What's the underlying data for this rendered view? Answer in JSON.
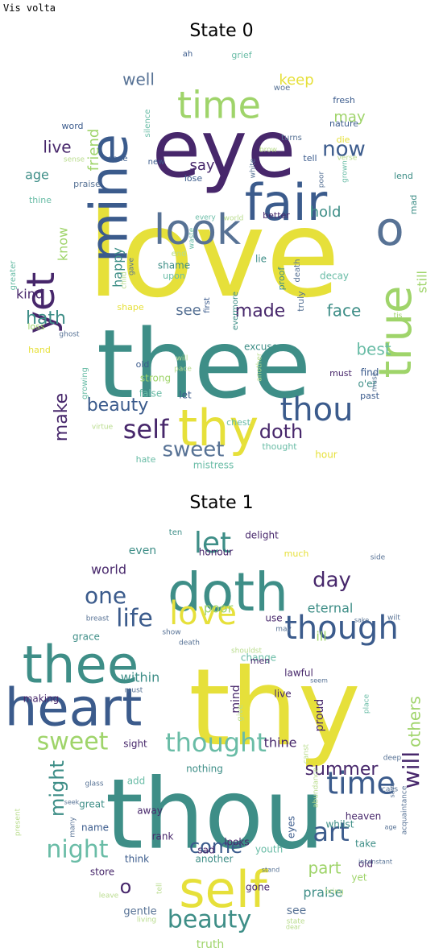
{
  "header": {
    "label": "Vis volta"
  },
  "palette": {
    "yellow": "#e6e03a",
    "green": "#9fd46a",
    "teal": "#3e8e87",
    "blue": "#3b5b8c",
    "purple": "#47276b",
    "lightgreen": "#b9dc8d",
    "aqua": "#69bca6",
    "slate": "#577295",
    "gray": "#5e6e8a"
  },
  "panels": [
    {
      "title": "State 0",
      "words": [
        {
          "text": "love",
          "color": "yellow"
        },
        {
          "text": "thee",
          "color": "teal"
        },
        {
          "text": "eye",
          "color": "purple"
        },
        {
          "text": "fair",
          "color": "blue"
        },
        {
          "text": "thy",
          "color": "yellow"
        },
        {
          "text": "mine",
          "color": "blue"
        },
        {
          "text": "look",
          "color": "slate"
        },
        {
          "text": "time",
          "color": "green"
        },
        {
          "text": "yet",
          "color": "purple"
        },
        {
          "text": "true",
          "color": "green"
        },
        {
          "text": "o",
          "color": "slate"
        },
        {
          "text": "thou",
          "color": "blue"
        },
        {
          "text": "self",
          "color": "purple"
        },
        {
          "text": "doth",
          "color": "purple"
        },
        {
          "text": "beauty",
          "color": "blue"
        },
        {
          "text": "sweet",
          "color": "slate"
        },
        {
          "text": "hath",
          "color": "teal"
        },
        {
          "text": "make",
          "color": "purple"
        },
        {
          "text": "made",
          "color": "purple"
        },
        {
          "text": "face",
          "color": "teal"
        },
        {
          "text": "best",
          "color": "aqua"
        },
        {
          "text": "now",
          "color": "blue"
        },
        {
          "text": "well",
          "color": "slate"
        },
        {
          "text": "keep",
          "color": "yellow"
        },
        {
          "text": "may",
          "color": "green"
        },
        {
          "text": "live",
          "color": "purple"
        },
        {
          "text": "age",
          "color": "teal"
        },
        {
          "text": "friend",
          "color": "green"
        },
        {
          "text": "know",
          "color": "green"
        },
        {
          "text": "say",
          "color": "purple"
        },
        {
          "text": "hold",
          "color": "teal"
        },
        {
          "text": "happy",
          "color": "teal"
        },
        {
          "text": "kind",
          "color": "purple"
        },
        {
          "text": "still",
          "color": "green"
        },
        {
          "text": "see",
          "color": "slate"
        },
        {
          "text": "thought",
          "color": "aqua"
        },
        {
          "text": "hour",
          "color": "yellow"
        },
        {
          "text": "mistress",
          "color": "aqua"
        },
        {
          "text": "hate",
          "color": "aqua"
        },
        {
          "text": "false",
          "color": "aqua"
        },
        {
          "text": "strong",
          "color": "green"
        },
        {
          "text": "let",
          "color": "blue"
        },
        {
          "text": "old",
          "color": "blue"
        },
        {
          "text": "excuse",
          "color": "teal"
        },
        {
          "text": "must",
          "color": "purple"
        },
        {
          "text": "find",
          "color": "blue"
        },
        {
          "text": "o'er",
          "color": "teal"
        },
        {
          "text": "past",
          "color": "blue"
        },
        {
          "text": "chest",
          "color": "aqua"
        },
        {
          "text": "lie",
          "color": "teal"
        },
        {
          "text": "decay",
          "color": "aqua"
        },
        {
          "text": "truly",
          "color": "slate"
        },
        {
          "text": "proof",
          "color": "teal"
        },
        {
          "text": "death",
          "color": "slate"
        },
        {
          "text": "shame",
          "color": "teal"
        },
        {
          "text": "upon",
          "color": "aqua"
        },
        {
          "text": "end",
          "color": "lightgreen"
        },
        {
          "text": "better",
          "color": "purple"
        },
        {
          "text": "mad",
          "color": "teal"
        },
        {
          "text": "lend",
          "color": "teal"
        },
        {
          "text": "word",
          "color": "blue"
        },
        {
          "text": "praise",
          "color": "slate"
        },
        {
          "text": "thine",
          "color": "aqua"
        },
        {
          "text": "greater",
          "color": "aqua"
        },
        {
          "text": "loss",
          "color": "green"
        },
        {
          "text": "hand",
          "color": "yellow"
        },
        {
          "text": "shape",
          "color": "yellow"
        },
        {
          "text": "fresh",
          "color": "blue"
        },
        {
          "text": "nature",
          "color": "blue"
        },
        {
          "text": "die",
          "color": "yellow"
        },
        {
          "text": "silence",
          "color": "aqua"
        },
        {
          "text": "done",
          "color": "blue"
        },
        {
          "text": "new",
          "color": "blue"
        },
        {
          "text": "lose",
          "color": "blue"
        },
        {
          "text": "tell",
          "color": "blue"
        },
        {
          "text": "woe",
          "color": "slate"
        },
        {
          "text": "grief",
          "color": "aqua"
        },
        {
          "text": "ah",
          "color": "blue"
        },
        {
          "text": "brow",
          "color": "lightgreen"
        },
        {
          "text": "turns",
          "color": "slate"
        },
        {
          "text": "every",
          "color": "aqua"
        },
        {
          "text": "world",
          "color": "lightgreen"
        },
        {
          "text": "first",
          "color": "blue"
        },
        {
          "text": "evermore",
          "color": "teal"
        },
        {
          "text": "another",
          "color": "lightgreen"
        },
        {
          "text": "waste",
          "color": "aqua"
        },
        {
          "text": "growing",
          "color": "aqua"
        },
        {
          "text": "virtue",
          "color": "lightgreen"
        },
        {
          "text": "pace",
          "color": "lightgreen"
        },
        {
          "text": "will",
          "color": "lightgreen"
        },
        {
          "text": "tis",
          "color": "green"
        },
        {
          "text": "sense",
          "color": "lightgreen"
        },
        {
          "text": "child",
          "color": "lightgreen"
        },
        {
          "text": "gave",
          "color": "slate"
        },
        {
          "text": "ghost",
          "color": "slate"
        },
        {
          "text": "white",
          "color": "slate"
        },
        {
          "text": "poor",
          "color": "slate"
        },
        {
          "text": "verse",
          "color": "lightgreen"
        },
        {
          "text": "grown",
          "color": "aqua"
        },
        {
          "text": "muse",
          "color": "slate"
        }
      ]
    },
    {
      "title": "State 1",
      "words": [
        {
          "text": "thy",
          "color": "yellow"
        },
        {
          "text": "thou",
          "color": "teal"
        },
        {
          "text": "heart",
          "color": "blue"
        },
        {
          "text": "thee",
          "color": "teal"
        },
        {
          "text": "doth",
          "color": "teal"
        },
        {
          "text": "self",
          "color": "yellow"
        },
        {
          "text": "though",
          "color": "blue"
        },
        {
          "text": "love",
          "color": "yellow"
        },
        {
          "text": "time",
          "color": "blue"
        },
        {
          "text": "thought",
          "color": "aqua"
        },
        {
          "text": "sweet",
          "color": "green"
        },
        {
          "text": "art",
          "color": "blue"
        },
        {
          "text": "beauty",
          "color": "teal"
        },
        {
          "text": "night",
          "color": "aqua"
        },
        {
          "text": "life",
          "color": "blue"
        },
        {
          "text": "let",
          "color": "teal"
        },
        {
          "text": "one",
          "color": "blue"
        },
        {
          "text": "come",
          "color": "blue"
        },
        {
          "text": "might",
          "color": "teal"
        },
        {
          "text": "day",
          "color": "purple"
        },
        {
          "text": "will",
          "color": "purple"
        },
        {
          "text": "others",
          "color": "green"
        },
        {
          "text": "summer",
          "color": "purple"
        },
        {
          "text": "part",
          "color": "green"
        },
        {
          "text": "within",
          "color": "teal"
        },
        {
          "text": "o",
          "color": "purple"
        },
        {
          "text": "praise",
          "color": "teal"
        },
        {
          "text": "eternal",
          "color": "teal"
        },
        {
          "text": "poor",
          "color": "green"
        },
        {
          "text": "world",
          "color": "purple"
        },
        {
          "text": "even",
          "color": "teal"
        },
        {
          "text": "proud",
          "color": "purple"
        },
        {
          "text": "mind",
          "color": "purple"
        },
        {
          "text": "thine",
          "color": "purple"
        },
        {
          "text": "ill",
          "color": "green"
        },
        {
          "text": "see",
          "color": "slate"
        },
        {
          "text": "truth",
          "color": "green"
        },
        {
          "text": "gentle",
          "color": "slate"
        },
        {
          "text": "store",
          "color": "purple"
        },
        {
          "text": "think",
          "color": "blue"
        },
        {
          "text": "gone",
          "color": "purple"
        },
        {
          "text": "old",
          "color": "purple"
        },
        {
          "text": "yet",
          "color": "green"
        },
        {
          "text": "take",
          "color": "teal"
        },
        {
          "text": "sad",
          "color": "purple"
        },
        {
          "text": "looks",
          "color": "purple"
        },
        {
          "text": "youth",
          "color": "aqua"
        },
        {
          "text": "another",
          "color": "teal"
        },
        {
          "text": "rank",
          "color": "purple"
        },
        {
          "text": "name",
          "color": "blue"
        },
        {
          "text": "away",
          "color": "purple"
        },
        {
          "text": "great",
          "color": "teal"
        },
        {
          "text": "nothing",
          "color": "teal"
        },
        {
          "text": "add",
          "color": "aqua"
        },
        {
          "text": "sight",
          "color": "purple"
        },
        {
          "text": "making",
          "color": "purple"
        },
        {
          "text": "grace",
          "color": "teal"
        },
        {
          "text": "change",
          "color": "aqua"
        },
        {
          "text": "live",
          "color": "purple"
        },
        {
          "text": "lawful",
          "color": "purple"
        },
        {
          "text": "men",
          "color": "purple"
        },
        {
          "text": "use",
          "color": "purple"
        },
        {
          "text": "heaven",
          "color": "purple"
        },
        {
          "text": "whilst",
          "color": "teal"
        },
        {
          "text": "eyes",
          "color": "blue"
        },
        {
          "text": "delight",
          "color": "purple"
        },
        {
          "text": "honour",
          "color": "purple"
        },
        {
          "text": "much",
          "color": "yellow"
        },
        {
          "text": "ten",
          "color": "teal"
        },
        {
          "text": "breast",
          "color": "slate"
        },
        {
          "text": "wilt",
          "color": "slate"
        },
        {
          "text": "side",
          "color": "slate"
        },
        {
          "text": "calls",
          "color": "slate"
        },
        {
          "text": "deep",
          "color": "slate"
        },
        {
          "text": "acquaintance",
          "color": "slate"
        },
        {
          "text": "abundance",
          "color": "lightgreen"
        },
        {
          "text": "place",
          "color": "aqua"
        },
        {
          "text": "canst",
          "color": "lightgreen"
        },
        {
          "text": "give",
          "color": "lightgreen"
        },
        {
          "text": "glass",
          "color": "slate"
        },
        {
          "text": "must",
          "color": "slate"
        },
        {
          "text": "shouldst",
          "color": "lightgreen"
        },
        {
          "text": "may",
          "color": "slate"
        },
        {
          "text": "show",
          "color": "slate"
        },
        {
          "text": "death",
          "color": "slate"
        },
        {
          "text": "bring",
          "color": "lightgreen"
        },
        {
          "text": "state",
          "color": "lightgreen"
        },
        {
          "text": "living",
          "color": "lightgreen"
        },
        {
          "text": "leave",
          "color": "lightgreen"
        },
        {
          "text": "present",
          "color": "lightgreen"
        },
        {
          "text": "many",
          "color": "slate"
        },
        {
          "text": "seek",
          "color": "slate"
        },
        {
          "text": "tell",
          "color": "lightgreen"
        },
        {
          "text": "stand",
          "color": "slate"
        },
        {
          "text": "dear",
          "color": "lightgreen"
        },
        {
          "text": "seem",
          "color": "slate"
        },
        {
          "text": "save",
          "color": "slate"
        },
        {
          "text": "inconstant",
          "color": "slate"
        },
        {
          "text": "sake",
          "color": "slate"
        },
        {
          "text": "age",
          "color": "slate"
        }
      ]
    }
  ]
}
